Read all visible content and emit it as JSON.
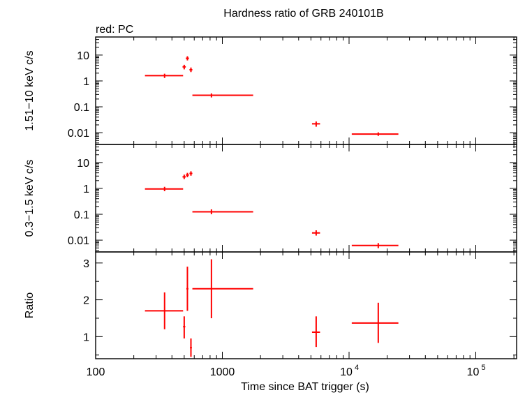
{
  "chart_data": {
    "type": "scatter",
    "title": "Hardness ratio of GRB 240101B",
    "subtitle": "red: PC",
    "xlabel": "Time since BAT trigger (s)",
    "xscale": "log",
    "xlim": [
      100,
      210000
    ],
    "x_ticks": [
      {
        "value": 100,
        "label": "100",
        "sup": ""
      },
      {
        "value": 1000,
        "label": "1000",
        "sup": ""
      },
      {
        "value": 10000,
        "label": "10",
        "sup": "4"
      },
      {
        "value": 100000,
        "label": "10",
        "sup": "5"
      }
    ],
    "series_color": "#ff0000",
    "panels": [
      {
        "ylabel": "1.51−10 keV c/s",
        "yscale": "log",
        "ylim": [
          0.0035,
          50
        ],
        "y_ticks": [
          {
            "value": 10,
            "label": "10"
          },
          {
            "value": 1,
            "label": "1"
          },
          {
            "value": 0.1,
            "label": "0.1"
          },
          {
            "value": 0.01,
            "label": "0.01"
          }
        ],
        "points": [
          {
            "x": 350,
            "xerr": [
              245,
              490
            ],
            "y": 1.6,
            "yerr": [
              1.3,
              1.9
            ]
          },
          {
            "x": 500,
            "xerr": [
              485,
              515
            ],
            "y": 3.5,
            "yerr": [
              2.8,
              4.2
            ]
          },
          {
            "x": 530,
            "xerr": [
              515,
              545
            ],
            "y": 7.5,
            "yerr": [
              6.2,
              9.0
            ]
          },
          {
            "x": 565,
            "xerr": [
              550,
              580
            ],
            "y": 2.7,
            "yerr": [
              2.2,
              3.3
            ]
          },
          {
            "x": 820,
            "xerr": [
              580,
              1750
            ],
            "y": 0.28,
            "yerr": [
              0.23,
              0.33
            ]
          },
          {
            "x": 5500,
            "xerr": [
              5100,
              5900
            ],
            "y": 0.022,
            "yerr": [
              0.017,
              0.027
            ]
          },
          {
            "x": 17000,
            "xerr": [
              10500,
              24500
            ],
            "y": 0.0088,
            "yerr": [
              0.0075,
              0.0103
            ]
          }
        ]
      },
      {
        "ylabel": "0.3−1.5 keV c/s",
        "yscale": "log",
        "ylim": [
          0.0035,
          50
        ],
        "y_ticks": [
          {
            "value": 10,
            "label": "10"
          },
          {
            "value": 1,
            "label": "1"
          },
          {
            "value": 0.1,
            "label": "0.1"
          },
          {
            "value": 0.01,
            "label": "0.01"
          }
        ],
        "points": [
          {
            "x": 350,
            "xerr": [
              245,
              490
            ],
            "y": 0.95,
            "yerr": [
              0.78,
              1.15
            ]
          },
          {
            "x": 500,
            "xerr": [
              485,
              515
            ],
            "y": 2.8,
            "yerr": [
              2.3,
              3.4
            ]
          },
          {
            "x": 530,
            "xerr": [
              515,
              545
            ],
            "y": 3.3,
            "yerr": [
              2.7,
              4.0
            ]
          },
          {
            "x": 565,
            "xerr": [
              550,
              580
            ],
            "y": 3.8,
            "yerr": [
              3.1,
              4.6
            ]
          },
          {
            "x": 820,
            "xerr": [
              580,
              1750
            ],
            "y": 0.125,
            "yerr": [
              0.1,
              0.155
            ]
          },
          {
            "x": 5500,
            "xerr": [
              5100,
              5900
            ],
            "y": 0.019,
            "yerr": [
              0.015,
              0.024
            ]
          },
          {
            "x": 17000,
            "xerr": [
              10500,
              24500
            ],
            "y": 0.0062,
            "yerr": [
              0.0049,
              0.0077
            ]
          }
        ]
      },
      {
        "ylabel": "Ratio",
        "yscale": "linear",
        "ylim": [
          0.4,
          3.3
        ],
        "y_ticks": [
          {
            "value": 1,
            "label": "1"
          },
          {
            "value": 2,
            "label": "2"
          },
          {
            "value": 3,
            "label": "3"
          }
        ],
        "points": [
          {
            "x": 350,
            "xerr": [
              245,
              490
            ],
            "y": 1.7,
            "yerr": [
              1.2,
              2.2
            ]
          },
          {
            "x": 500,
            "xerr": [
              490,
              510
            ],
            "y": 1.27,
            "yerr": [
              0.95,
              1.55
            ]
          },
          {
            "x": 530,
            "xerr": [
              520,
              540
            ],
            "y": 2.3,
            "yerr": [
              1.7,
              2.9
            ]
          },
          {
            "x": 565,
            "xerr": [
              555,
              575
            ],
            "y": 0.7,
            "yerr": [
              0.45,
              0.95
            ]
          },
          {
            "x": 820,
            "xerr": [
              580,
              1750
            ],
            "y": 2.3,
            "yerr": [
              1.5,
              3.1
            ]
          },
          {
            "x": 5500,
            "xerr": [
              5100,
              5900
            ],
            "y": 1.12,
            "yerr": [
              0.72,
              1.55
            ]
          },
          {
            "x": 17000,
            "xerr": [
              10500,
              24500
            ],
            "y": 1.37,
            "yerr": [
              0.83,
              1.92
            ]
          }
        ]
      }
    ]
  }
}
